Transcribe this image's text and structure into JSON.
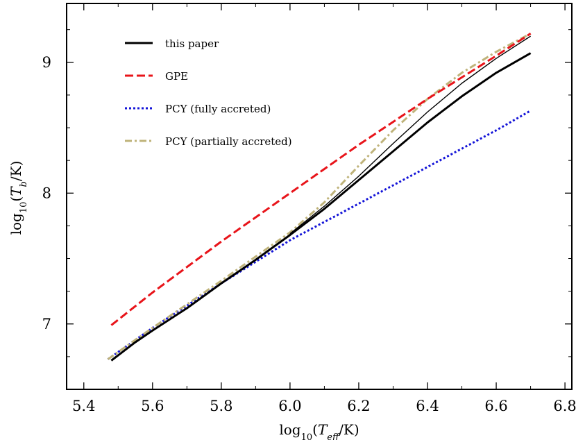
{
  "chart_data": {
    "type": "line",
    "xlabel": {
      "pre": "log",
      "sub": "10",
      "mid": "(",
      "italic": "T",
      "italic_sub": "eff",
      "post": "/K)"
    },
    "ylabel": {
      "pre": "log",
      "sub": "10",
      "mid": "(",
      "italic": "T",
      "italic_sub": "b",
      "post": "/K)"
    },
    "xlim": [
      5.35,
      6.82
    ],
    "ylim": [
      6.5,
      9.45
    ],
    "x_ticks": [
      5.4,
      5.6,
      5.8,
      6.0,
      6.2,
      6.4,
      6.6,
      6.8
    ],
    "x_tick_labels": [
      "5.4",
      "5.6",
      "5.8",
      "6.0",
      "6.2",
      "6.4",
      "6.6",
      "6.8"
    ],
    "x_minor_ticks": [
      5.5,
      5.7,
      5.9,
      6.1,
      6.3,
      6.5,
      6.7
    ],
    "y_ticks": [
      7,
      8,
      9
    ],
    "y_tick_labels": [
      "7",
      "8",
      "9"
    ],
    "y_minor_ticks": [
      6.75,
      7.25,
      7.5,
      7.75,
      8.25,
      8.5,
      8.75,
      9.25
    ],
    "grid": false,
    "legend_position": "top-left",
    "series": [
      {
        "name": "this paper",
        "color": "#000000",
        "style": "solid",
        "x": [
          5.48,
          5.55,
          5.6,
          5.7,
          5.8,
          5.9,
          6.0,
          6.1,
          6.2,
          6.3,
          6.4,
          6.5,
          6.6,
          6.7
        ],
        "y": [
          6.72,
          6.86,
          6.95,
          7.12,
          7.31,
          7.49,
          7.68,
          7.88,
          8.1,
          8.32,
          8.54,
          8.74,
          8.92,
          9.07
        ]
      },
      {
        "name": "",
        "color": "#000000",
        "style": "thin",
        "x": [
          6.0,
          6.1,
          6.2,
          6.3,
          6.4,
          6.5,
          6.6,
          6.7
        ],
        "y": [
          7.69,
          7.9,
          8.13,
          8.38,
          8.62,
          8.84,
          9.03,
          9.2
        ]
      },
      {
        "name": "GPE",
        "color": "#e8141a",
        "style": "dashed",
        "x": [
          5.48,
          5.6,
          5.8,
          6.0,
          6.2,
          6.4,
          6.6,
          6.7
        ],
        "y": [
          6.99,
          7.24,
          7.63,
          8.0,
          8.37,
          8.72,
          9.05,
          9.22
        ]
      },
      {
        "name": "PCY (fully accreted)",
        "color": "#1414d8",
        "style": "dotted",
        "x": [
          5.47,
          5.6,
          5.8,
          6.0,
          6.2,
          6.4,
          6.6,
          6.7
        ],
        "y": [
          6.73,
          6.97,
          7.31,
          7.64,
          7.92,
          8.2,
          8.48,
          8.63
        ]
      },
      {
        "name": "PCY (partially accreted)",
        "color": "#bfb37a",
        "style": "dashdot",
        "x": [
          5.47,
          5.6,
          5.8,
          6.0,
          6.1,
          6.2,
          6.3,
          6.4,
          6.5,
          6.6,
          6.7
        ],
        "y": [
          6.73,
          6.97,
          7.33,
          7.7,
          7.93,
          8.21,
          8.48,
          8.72,
          8.92,
          9.08,
          9.22
        ]
      }
    ]
  }
}
